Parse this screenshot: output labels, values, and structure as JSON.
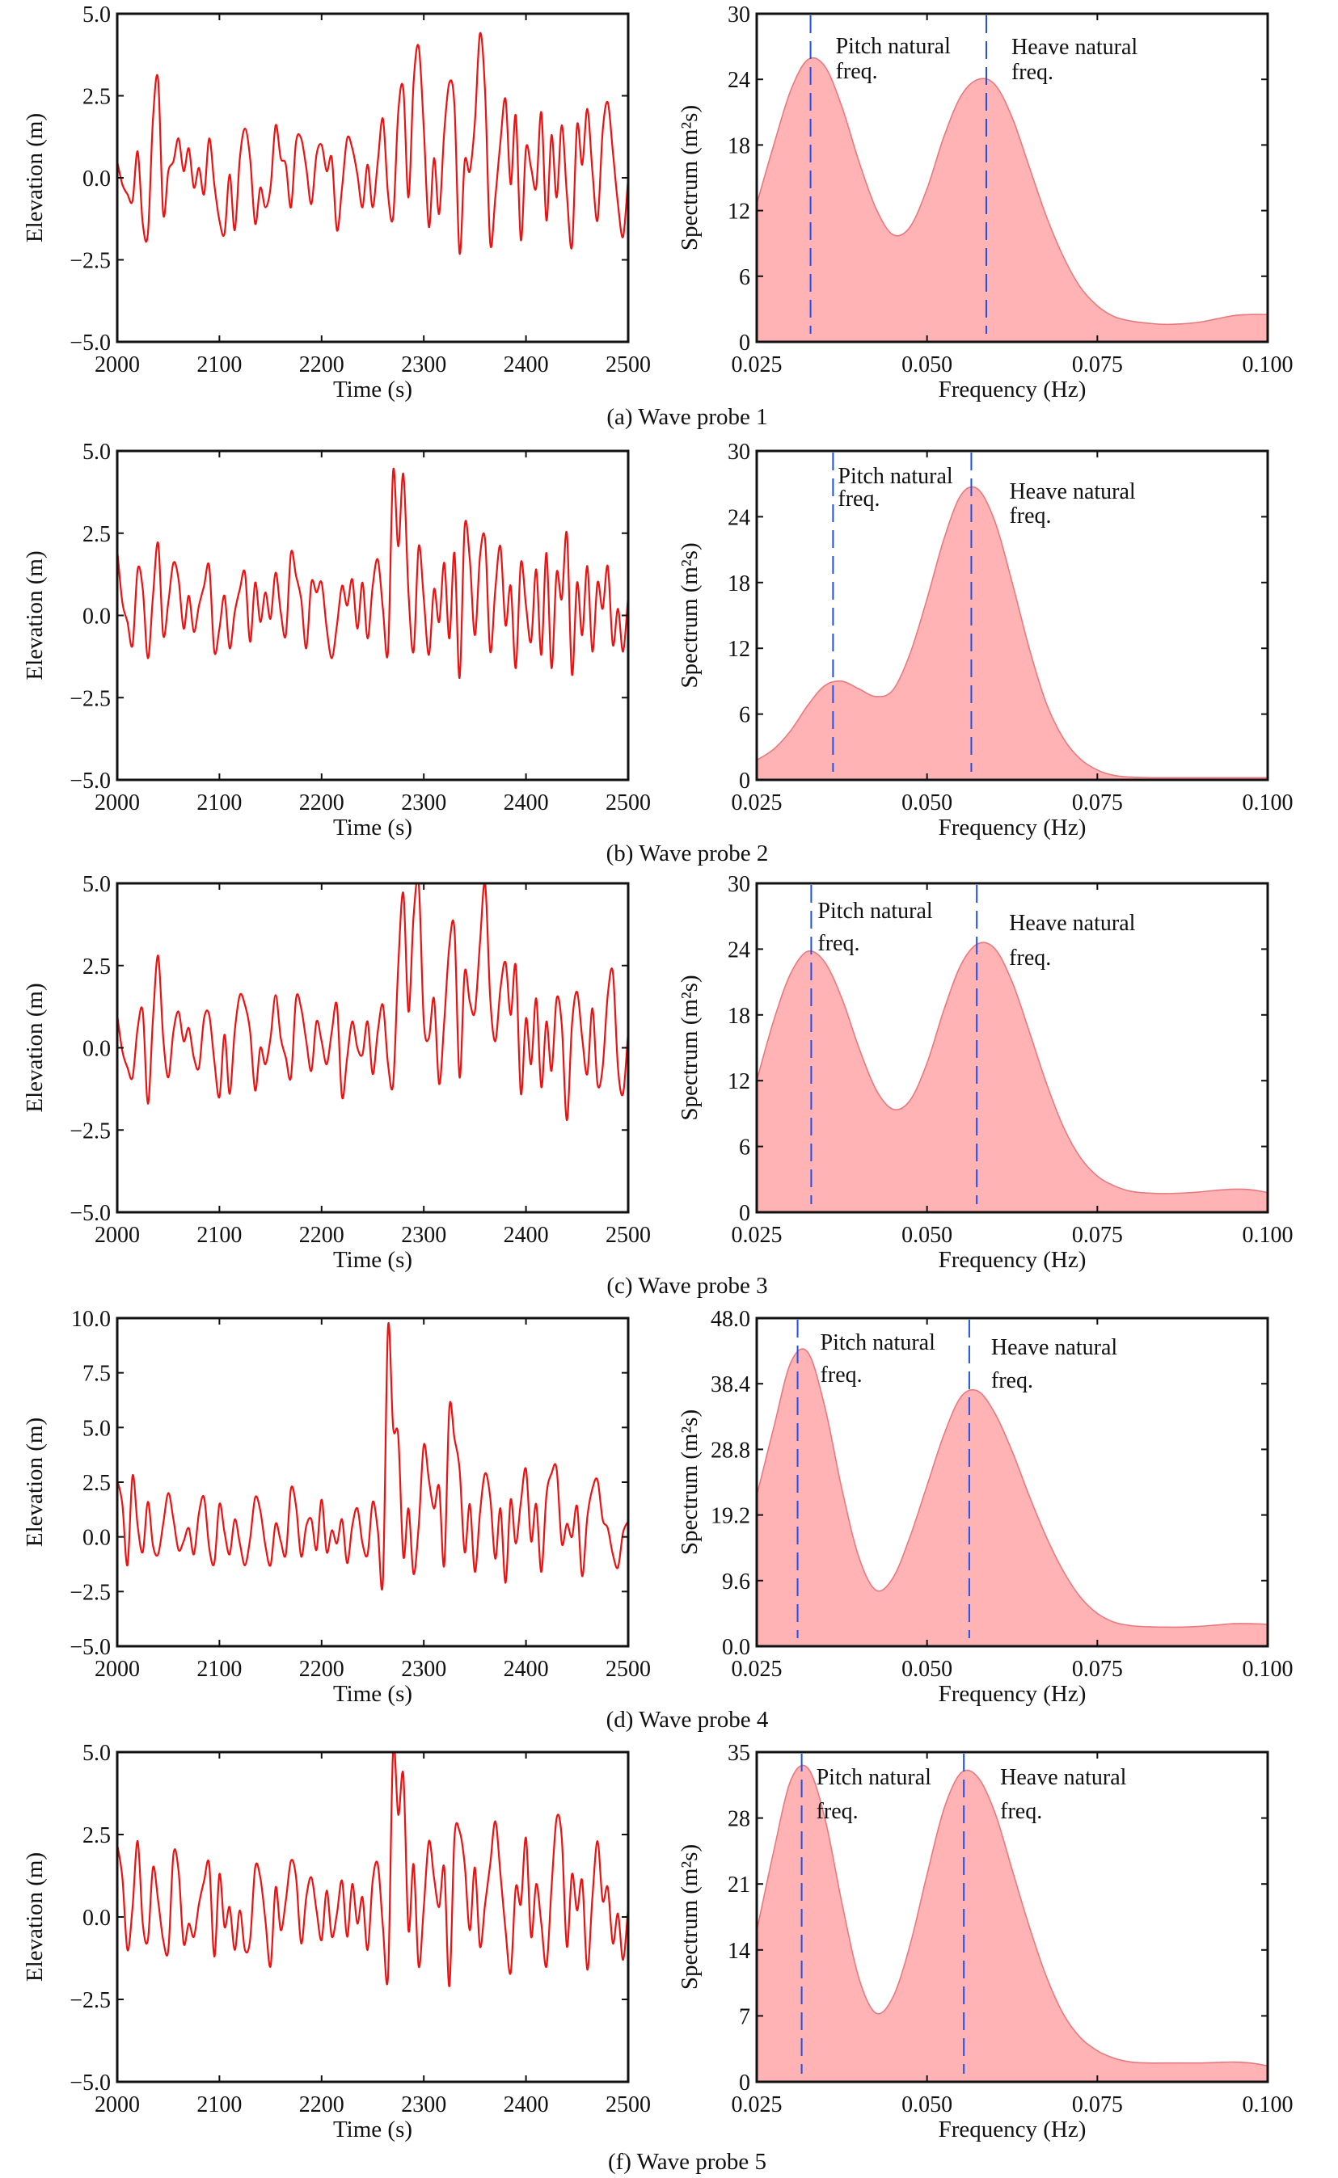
{
  "colors": {
    "series_line": "#ee1111",
    "spectrum_fill": "#ffb3b5",
    "spectrum_edge": "#e87a7e",
    "natural_freq_line": "#2050e6",
    "axes": "#111111"
  },
  "chart_data": [
    {
      "panel": "a",
      "type": "line",
      "xlabel": "Time (s)",
      "ylabel": "Elevation (m)",
      "xlim": [
        2000,
        2500
      ],
      "ylim": [
        -5.0,
        5.0
      ],
      "xticks": [
        "2000",
        "2100",
        "2200",
        "2300",
        "2400",
        "2500"
      ],
      "yticks": [
        "−5.0",
        "−2.5",
        "0.0",
        "2.5",
        "5.0"
      ],
      "x_start": 2000,
      "x_step": 5,
      "values": [
        0.5,
        -0.2,
        -0.5,
        -0.7,
        0.8,
        -1.4,
        -1.7,
        1.8,
        3.0,
        -1.1,
        0.2,
        0.5,
        1.2,
        0.2,
        0.9,
        -0.3,
        0.3,
        -0.5,
        1.2,
        -0.2,
        -1.3,
        -1.7,
        0.1,
        -1.6,
        0.6,
        1.5,
        0.6,
        -1.4,
        -0.3,
        -0.9,
        -0.3,
        1.6,
        0.6,
        0.4,
        -0.9,
        1.1,
        1.2,
        0.3,
        -0.8,
        0.7,
        1.0,
        0.2,
        0.6,
        -1.6,
        -0.3,
        1.2,
        0.9,
        0.1,
        -0.9,
        0.4,
        -0.9,
        0.5,
        1.8,
        -0.5,
        -1.2,
        2.0,
        2.7,
        -0.6,
        2.9,
        4.0,
        1.5,
        -1.5,
        0.6,
        -1.1,
        1.4,
        2.9,
        2.2,
        -2.3,
        0.5,
        0.2,
        1.7,
        4.4,
        2.6,
        -2.0,
        -0.6,
        1.1,
        2.4,
        -0.2,
        1.9,
        -1.9,
        0.9,
        0.3,
        -0.3,
        2.0,
        -1.3,
        1.3,
        -0.6,
        1.6,
        -0.5,
        -2.1,
        1.6,
        0.4,
        2.1,
        0.2,
        -1.3,
        1.4,
        2.3,
        0.8,
        -0.8,
        -1.8,
        0.0
      ]
    },
    {
      "panel": "a",
      "type": "area",
      "xlabel": "Frequency (Hz)",
      "ylabel": "Spectrum (m²s)",
      "xlim": [
        0.025,
        0.1
      ],
      "ylim": [
        0,
        30
      ],
      "xticks": [
        "0.025",
        "0.050",
        "0.075",
        "0.100"
      ],
      "yticks": [
        "0",
        "6",
        "12",
        "18",
        "24",
        "30"
      ],
      "x_start": 0.025,
      "x_step": 0.0025,
      "values": [
        12.6,
        18,
        23,
        25.8,
        25.2,
        21.5,
        16.5,
        12.2,
        9.8,
        10.5,
        14,
        18.8,
        22.5,
        24,
        23.5,
        20.5,
        16,
        11.5,
        7.8,
        5,
        3.3,
        2.3,
        1.9,
        1.7,
        1.6,
        1.65,
        1.8,
        2.1,
        2.4,
        2.5,
        2.5
      ],
      "natural_frequencies": [
        {
          "name": "pitch",
          "freq": 0.0329,
          "label_line1": "Pitch natural",
          "label_line2": "freq."
        },
        {
          "name": "heave",
          "freq": 0.0587,
          "label_line1": "Heave natural",
          "label_line2": "freq."
        }
      ],
      "caption": "(a) Wave probe 1"
    },
    {
      "panel": "b",
      "type": "line",
      "xlabel": "Time (s)",
      "ylabel": "Elevation (m)",
      "xlim": [
        2000,
        2500
      ],
      "ylim": [
        -5.0,
        5.0
      ],
      "xticks": [
        "2000",
        "2100",
        "2200",
        "2300",
        "2400",
        "2500"
      ],
      "yticks": [
        "−5.0",
        "−2.5",
        "0.0",
        "2.5",
        "5.0"
      ],
      "x_start": 2000,
      "x_step": 5,
      "values": [
        2.0,
        0.4,
        -0.2,
        -0.9,
        1.4,
        0.8,
        -1.3,
        0.6,
        2.2,
        -0.6,
        0.4,
        1.6,
        1.1,
        -0.4,
        0.6,
        -0.5,
        0.3,
        0.9,
        1.5,
        -1.1,
        -0.4,
        0.6,
        -1.0,
        0.1,
        0.8,
        1.3,
        -0.8,
        1.0,
        -0.2,
        0.7,
        -0.1,
        1.3,
        0.1,
        -0.6,
        1.9,
        1.2,
        0.5,
        -1.0,
        1.0,
        0.7,
        1.0,
        -0.4,
        -1.3,
        -0.3,
        0.9,
        0.3,
        1.1,
        -0.4,
        1.0,
        -0.7,
        0.9,
        1.7,
        0.2,
        -1.1,
        4.4,
        2.1,
        4.3,
        0.7,
        -1.1,
        2.1,
        0.5,
        -1.2,
        0.8,
        -0.2,
        1.6,
        -0.7,
        1.9,
        -1.9,
        2.7,
        1.7,
        -0.6,
        1.8,
        2.3,
        -1.1,
        0.8,
        2.1,
        -0.3,
        0.9,
        -1.6,
        1.6,
        0.3,
        -0.8,
        1.4,
        -1.2,
        1.9,
        -1.6,
        1.3,
        0.5,
        2.5,
        -1.8,
        1.0,
        -0.6,
        1.5,
        -1.1,
        1.0,
        0.2,
        1.5,
        -0.9,
        0.2,
        -1.1,
        0.6
      ]
    },
    {
      "panel": "b",
      "type": "area",
      "xlabel": "Frequency (Hz)",
      "ylabel": "Spectrum (m²s)",
      "xlim": [
        0.025,
        0.1
      ],
      "ylim": [
        0,
        30
      ],
      "xticks": [
        "0.025",
        "0.050",
        "0.075",
        "0.100"
      ],
      "yticks": [
        "0",
        "6",
        "12",
        "18",
        "24",
        "30"
      ],
      "x_start": 0.025,
      "x_step": 0.0025,
      "values": [
        1.8,
        2.8,
        4.5,
        6.8,
        8.6,
        9.0,
        8.3,
        7.6,
        8.2,
        11.5,
        16.5,
        22,
        26,
        26.5,
        23.5,
        18,
        12,
        7,
        3.8,
        1.9,
        0.9,
        0.4,
        0.25,
        0.2,
        0.2,
        0.2,
        0.2,
        0.2,
        0.2,
        0.2,
        0.2
      ],
      "natural_frequencies": [
        {
          "name": "pitch",
          "freq": 0.0362,
          "label_line1": "Pitch natural",
          "label_line2": "freq."
        },
        {
          "name": "heave",
          "freq": 0.0565,
          "label_line1": "Heave natural",
          "label_line2": "freq."
        }
      ],
      "caption": "(b) Wave probe 2"
    },
    {
      "panel": "c",
      "type": "line",
      "xlabel": "Time (s)",
      "ylabel": "Elevation (m)",
      "xlim": [
        2000,
        2500
      ],
      "ylim": [
        -5.0,
        5.0
      ],
      "xticks": [
        "2000",
        "2100",
        "2200",
        "2300",
        "2400",
        "2500"
      ],
      "yticks": [
        "−5.0",
        "−2.5",
        "0.0",
        "2.5",
        "5.0"
      ],
      "x_start": 2000,
      "x_step": 5,
      "values": [
        1.0,
        -0.1,
        -0.6,
        -0.9,
        0.6,
        1.1,
        -1.7,
        0.9,
        2.8,
        0.3,
        -0.9,
        0.5,
        1.1,
        0.2,
        0.6,
        -0.3,
        -0.6,
        0.9,
        1.0,
        -0.4,
        -1.5,
        0.4,
        -1.4,
        0.5,
        1.6,
        1.3,
        0.5,
        -1.3,
        0.0,
        -0.5,
        0.3,
        1.6,
        0.3,
        -0.3,
        -0.9,
        1.5,
        1.2,
        0.2,
        -0.7,
        0.8,
        0.2,
        -0.5,
        0.5,
        1.3,
        -1.5,
        -0.3,
        0.8,
        0.0,
        -0.2,
        0.8,
        -0.8,
        0.5,
        1.3,
        -0.5,
        -1.1,
        2.5,
        4.7,
        1.1,
        4.0,
        5.0,
        0.8,
        0.3,
        1.5,
        -1.1,
        0.8,
        3.1,
        3.6,
        -0.9,
        2.3,
        1.4,
        1.1,
        3.2,
        5.0,
        1.5,
        0.2,
        1.8,
        2.6,
        1.0,
        2.5,
        -1.4,
        0.9,
        -0.5,
        1.5,
        -1.2,
        0.8,
        -0.7,
        1.5,
        0.7,
        -2.2,
        0.7,
        1.7,
        0.3,
        -0.8,
        1.2,
        -1.1,
        -0.6,
        1.6,
        2.3,
        -0.6,
        -1.4,
        0.5
      ]
    },
    {
      "panel": "c",
      "type": "area",
      "xlabel": "Frequency (Hz)",
      "ylabel": "Spectrum (m²s)",
      "xlim": [
        0.025,
        0.1
      ],
      "ylim": [
        0,
        30
      ],
      "xticks": [
        "0.025",
        "0.050",
        "0.075",
        "0.100"
      ],
      "yticks": [
        "0",
        "6",
        "12",
        "18",
        "24",
        "30"
      ],
      "x_start": 0.025,
      "x_step": 0.0025,
      "values": [
        12,
        17.5,
        21.8,
        23.8,
        22.8,
        19.5,
        15,
        11.2,
        9.4,
        10.2,
        13.6,
        18.5,
        22.6,
        24.5,
        24,
        21,
        16.5,
        11.8,
        7.8,
        5,
        3.3,
        2.4,
        1.9,
        1.75,
        1.7,
        1.75,
        1.85,
        2.0,
        2.1,
        2.05,
        1.8
      ],
      "natural_frequencies": [
        {
          "name": "pitch",
          "freq": 0.033,
          "label_line1": "Pitch natural",
          "label_line2": "freq."
        },
        {
          "name": "heave",
          "freq": 0.0573,
          "label_line1": "Heave natural",
          "label_line2": "freq."
        }
      ],
      "caption": "(c) Wave probe 3"
    },
    {
      "panel": "d",
      "type": "line",
      "xlabel": "Time (s)",
      "ylabel": "Elevation (m)",
      "xlim": [
        2000,
        2500
      ],
      "ylim": [
        -5.0,
        10.0
      ],
      "xticks": [
        "2000",
        "2100",
        "2200",
        "2300",
        "2400",
        "2500"
      ],
      "yticks": [
        "−5.0",
        "−2.5",
        "0.0",
        "2.5",
        "5.0",
        "7.5",
        "10.0"
      ],
      "x_start": 2000,
      "x_step": 5,
      "values": [
        2.6,
        1.5,
        -1.3,
        2.8,
        0.5,
        -0.7,
        1.6,
        -0.4,
        -0.8,
        0.6,
        2.0,
        0.8,
        -0.6,
        -0.2,
        0.4,
        -0.8,
        1.1,
        1.8,
        -0.5,
        -1.2,
        1.5,
        0.2,
        -0.8,
        0.8,
        -0.3,
        -1.3,
        -0.1,
        1.8,
        1.2,
        -0.4,
        -1.3,
        0.6,
        -0.2,
        -0.8,
        2.2,
        1.4,
        -0.9,
        0.5,
        0.8,
        -0.6,
        1.7,
        -0.7,
        0.3,
        -0.3,
        0.8,
        -1.2,
        0.5,
        1.3,
        -0.3,
        -0.8,
        1.6,
        0.3,
        -2.0,
        9.6,
        5.0,
        4.6,
        -0.9,
        1.3,
        -1.7,
        0.5,
        4.2,
        2.6,
        1.3,
        2.3,
        -1.3,
        5.9,
        4.5,
        3.1,
        -0.7,
        1.5,
        -1.6,
        1.1,
        2.9,
        1.8,
        -1.0,
        1.3,
        -2.1,
        1.7,
        -0.3,
        1.6,
        3.1,
        -0.2,
        1.5,
        -1.6,
        1.9,
        2.9,
        3.1,
        -0.3,
        0.6,
        0.0,
        1.4,
        -1.8,
        0.9,
        2.2,
        2.6,
        0.8,
        0.4,
        -0.8,
        -1.4,
        0.2,
        0.7
      ]
    },
    {
      "panel": "d",
      "type": "area",
      "xlabel": "Frequency (Hz)",
      "ylabel": "Spectrum (m²s)",
      "xlim": [
        0.025,
        0.1
      ],
      "ylim": [
        0.0,
        48.0
      ],
      "xticks": [
        "0.025",
        "0.050",
        "0.075",
        "0.100"
      ],
      "yticks": [
        "0.0",
        "9.6",
        "19.2",
        "28.8",
        "38.4",
        "48.0"
      ],
      "x_start": 0.025,
      "x_step": 0.0025,
      "values": [
        22,
        32,
        41.5,
        43,
        35,
        23,
        13,
        8.2,
        10,
        16,
        23.5,
        31,
        36.5,
        37.3,
        34,
        28.5,
        22,
        16,
        11,
        7.2,
        4.8,
        3.5,
        3.0,
        2.85,
        2.8,
        2.8,
        2.9,
        3.1,
        3.3,
        3.3,
        3.2
      ],
      "natural_frequencies": [
        {
          "name": "pitch",
          "freq": 0.031,
          "label_line1": "Pitch natural",
          "label_line2": "freq."
        },
        {
          "name": "heave",
          "freq": 0.0562,
          "label_line1": "Heave natural",
          "label_line2": "freq."
        }
      ],
      "caption": "(d) Wave probe 4"
    },
    {
      "panel": "f",
      "type": "line",
      "xlabel": "Time (s)",
      "ylabel": "Elevation (m)",
      "xlim": [
        2000,
        2500
      ],
      "ylim": [
        -5.0,
        5.0
      ],
      "xticks": [
        "2000",
        "2100",
        "2200",
        "2300",
        "2400",
        "2500"
      ],
      "yticks": [
        "−5.0",
        "−2.5",
        "0.0",
        "2.5",
        "5.0"
      ],
      "x_start": 2000,
      "x_step": 5,
      "values": [
        2.2,
        1.2,
        -1.0,
        0.3,
        2.3,
        -0.2,
        -0.7,
        1.5,
        0.5,
        -0.7,
        -1.0,
        1.9,
        1.4,
        -0.8,
        -0.2,
        -0.6,
        0.4,
        1.1,
        1.6,
        -1.2,
        1.3,
        -0.3,
        0.3,
        -1.0,
        0.2,
        -1.0,
        -0.7,
        1.5,
        1.2,
        -0.1,
        -1.5,
        0.9,
        -0.4,
        0.5,
        1.7,
        1.2,
        -0.8,
        0.6,
        1.2,
        0.2,
        -0.7,
        0.8,
        -0.6,
        0.1,
        1.1,
        -0.6,
        1.0,
        -0.2,
        0.6,
        -1.0,
        1.1,
        1.6,
        -0.3,
        -1.8,
        5.1,
        3.1,
        4.3,
        -0.4,
        1.6,
        -1.5,
        0.3,
        2.3,
        1.2,
        0.3,
        1.5,
        -2.1,
        2.4,
        2.6,
        1.6,
        -0.4,
        1.5,
        -0.9,
        0.4,
        1.6,
        2.9,
        1.3,
        -0.4,
        -1.7,
        0.9,
        0.4,
        2.4,
        -0.6,
        1.0,
        -0.2,
        -1.5,
        0.9,
        3.0,
        2.4,
        -0.9,
        1.3,
        0.2,
        1.1,
        -1.6,
        0.6,
        2.3,
        0.5,
        0.9,
        -0.8,
        0.1,
        -1.3,
        0.3
      ]
    },
    {
      "panel": "f",
      "type": "area",
      "xlabel": "Frequency (Hz)",
      "ylabel": "Spectrum (m²s)",
      "xlim": [
        0.025,
        0.1
      ],
      "ylim": [
        0,
        35
      ],
      "xticks": [
        "0.025",
        "0.050",
        "0.075",
        "0.100"
      ],
      "yticks": [
        "0",
        "7",
        "14",
        "21",
        "28",
        "35"
      ],
      "x_start": 0.025,
      "x_step": 0.0025,
      "values": [
        16,
        24.5,
        32,
        33.3,
        28,
        19,
        11,
        7.3,
        9,
        14.5,
        22,
        29,
        32.8,
        32.3,
        28.5,
        22.5,
        16.5,
        11.2,
        7.2,
        4.7,
        3.3,
        2.5,
        2.1,
        2.0,
        2.0,
        2.0,
        2.0,
        2.05,
        2.1,
        2.0,
        1.7
      ],
      "natural_frequencies": [
        {
          "name": "pitch",
          "freq": 0.0316,
          "label_line1": "Pitch natural",
          "label_line2": "freq."
        },
        {
          "name": "heave",
          "freq": 0.0554,
          "label_line1": "Heave natural",
          "label_line2": "freq."
        }
      ],
      "caption": "(f) Wave probe 5"
    }
  ]
}
